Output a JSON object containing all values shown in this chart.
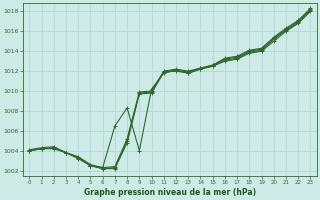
{
  "bg_color": "#ceeae7",
  "grid_color": "#b8d8d5",
  "line_color": "#2d6a2d",
  "marker_color": "#2d6a2d",
  "xlabel": "Graphe pression niveau de la mer (hPa)",
  "xlabel_color": "#1a5c1a",
  "xlim": [
    -0.5,
    23.5
  ],
  "ylim": [
    1001.5,
    1018.8
  ],
  "yticks": [
    1002,
    1004,
    1006,
    1008,
    1010,
    1012,
    1014,
    1016,
    1018
  ],
  "xticks": [
    0,
    1,
    2,
    3,
    4,
    5,
    6,
    7,
    8,
    9,
    10,
    11,
    12,
    13,
    14,
    15,
    16,
    17,
    18,
    19,
    20,
    21,
    22,
    23
  ],
  "series": [
    [
      1004.0,
      1004.2,
      1004.2,
      1003.8,
      1003.2,
      1002.5,
      1002.2,
      1002.2,
      1004.8,
      1009.7,
      1009.8,
      1011.9,
      1012.0,
      1011.8,
      1012.2,
      1012.5,
      1013.0,
      1013.2,
      1013.8,
      1014.0,
      1015.0,
      1016.0,
      1016.8,
      1018.0
    ],
    [
      1004.0,
      1004.2,
      1004.3,
      1003.8,
      1003.3,
      1002.5,
      1002.2,
      1002.3,
      1005.0,
      1009.8,
      1009.9,
      1011.9,
      1012.1,
      1011.8,
      1012.2,
      1012.5,
      1013.1,
      1013.3,
      1013.9,
      1014.1,
      1015.2,
      1016.1,
      1016.9,
      1018.1
    ],
    [
      1004.0,
      1004.2,
      1004.3,
      1003.8,
      1003.4,
      1002.6,
      1002.3,
      1002.4,
      1005.2,
      1009.9,
      1010.0,
      1012.0,
      1012.2,
      1012.0,
      1012.3,
      1012.6,
      1013.2,
      1013.4,
      1014.0,
      1014.2,
      1015.3,
      1016.2,
      1017.0,
      1018.2
    ],
    [
      1004.1,
      1004.3,
      1004.4,
      1003.8,
      1003.3,
      1002.5,
      1002.3,
      1006.5,
      1008.3,
      1004.0,
      1010.2,
      1011.8,
      1012.1,
      1011.9,
      1012.3,
      1012.6,
      1013.3,
      1013.5,
      1014.1,
      1014.3,
      1015.4,
      1016.3,
      1017.1,
      1018.3
    ]
  ]
}
